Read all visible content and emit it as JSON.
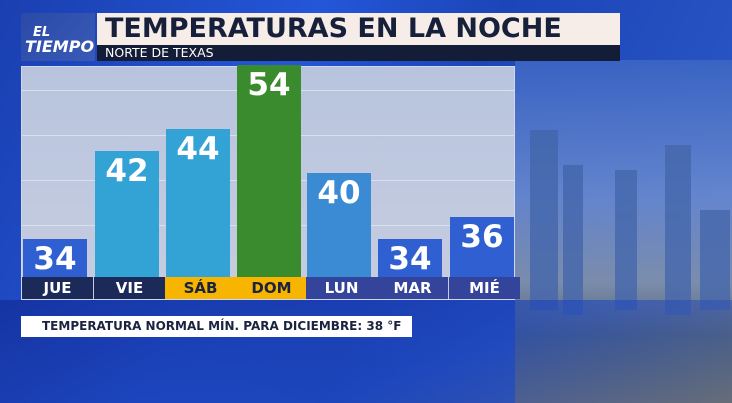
{
  "logo": {
    "line1": "EL",
    "line2": "TIEMPO"
  },
  "header": {
    "title": "TEMPERATURAS EN LA NOCHE",
    "subtitle": "NORTE DE TEXAS"
  },
  "chart_data": {
    "type": "bar",
    "categories": [
      "JUE",
      "VIE",
      "SÁB",
      "DOM",
      "LUN",
      "MAR",
      "MIÉ"
    ],
    "values": [
      34,
      42,
      44,
      54,
      40,
      34,
      36
    ],
    "bar_colors": [
      "#2f5fd0",
      "#33a3d6",
      "#33a3d6",
      "#3a8a2e",
      "#3a8ad4",
      "#2f5fd0",
      "#2f5fd0"
    ],
    "highlighted_days": [
      "SÁB",
      "DOM"
    ],
    "highlight_color": "#f7b500",
    "title": "",
    "xlabel": "",
    "ylabel": ""
  },
  "footer": {
    "normal_text": "TEMPERATURA NORMAL MÍN. PARA DICIEMBRE: 38 °F"
  }
}
